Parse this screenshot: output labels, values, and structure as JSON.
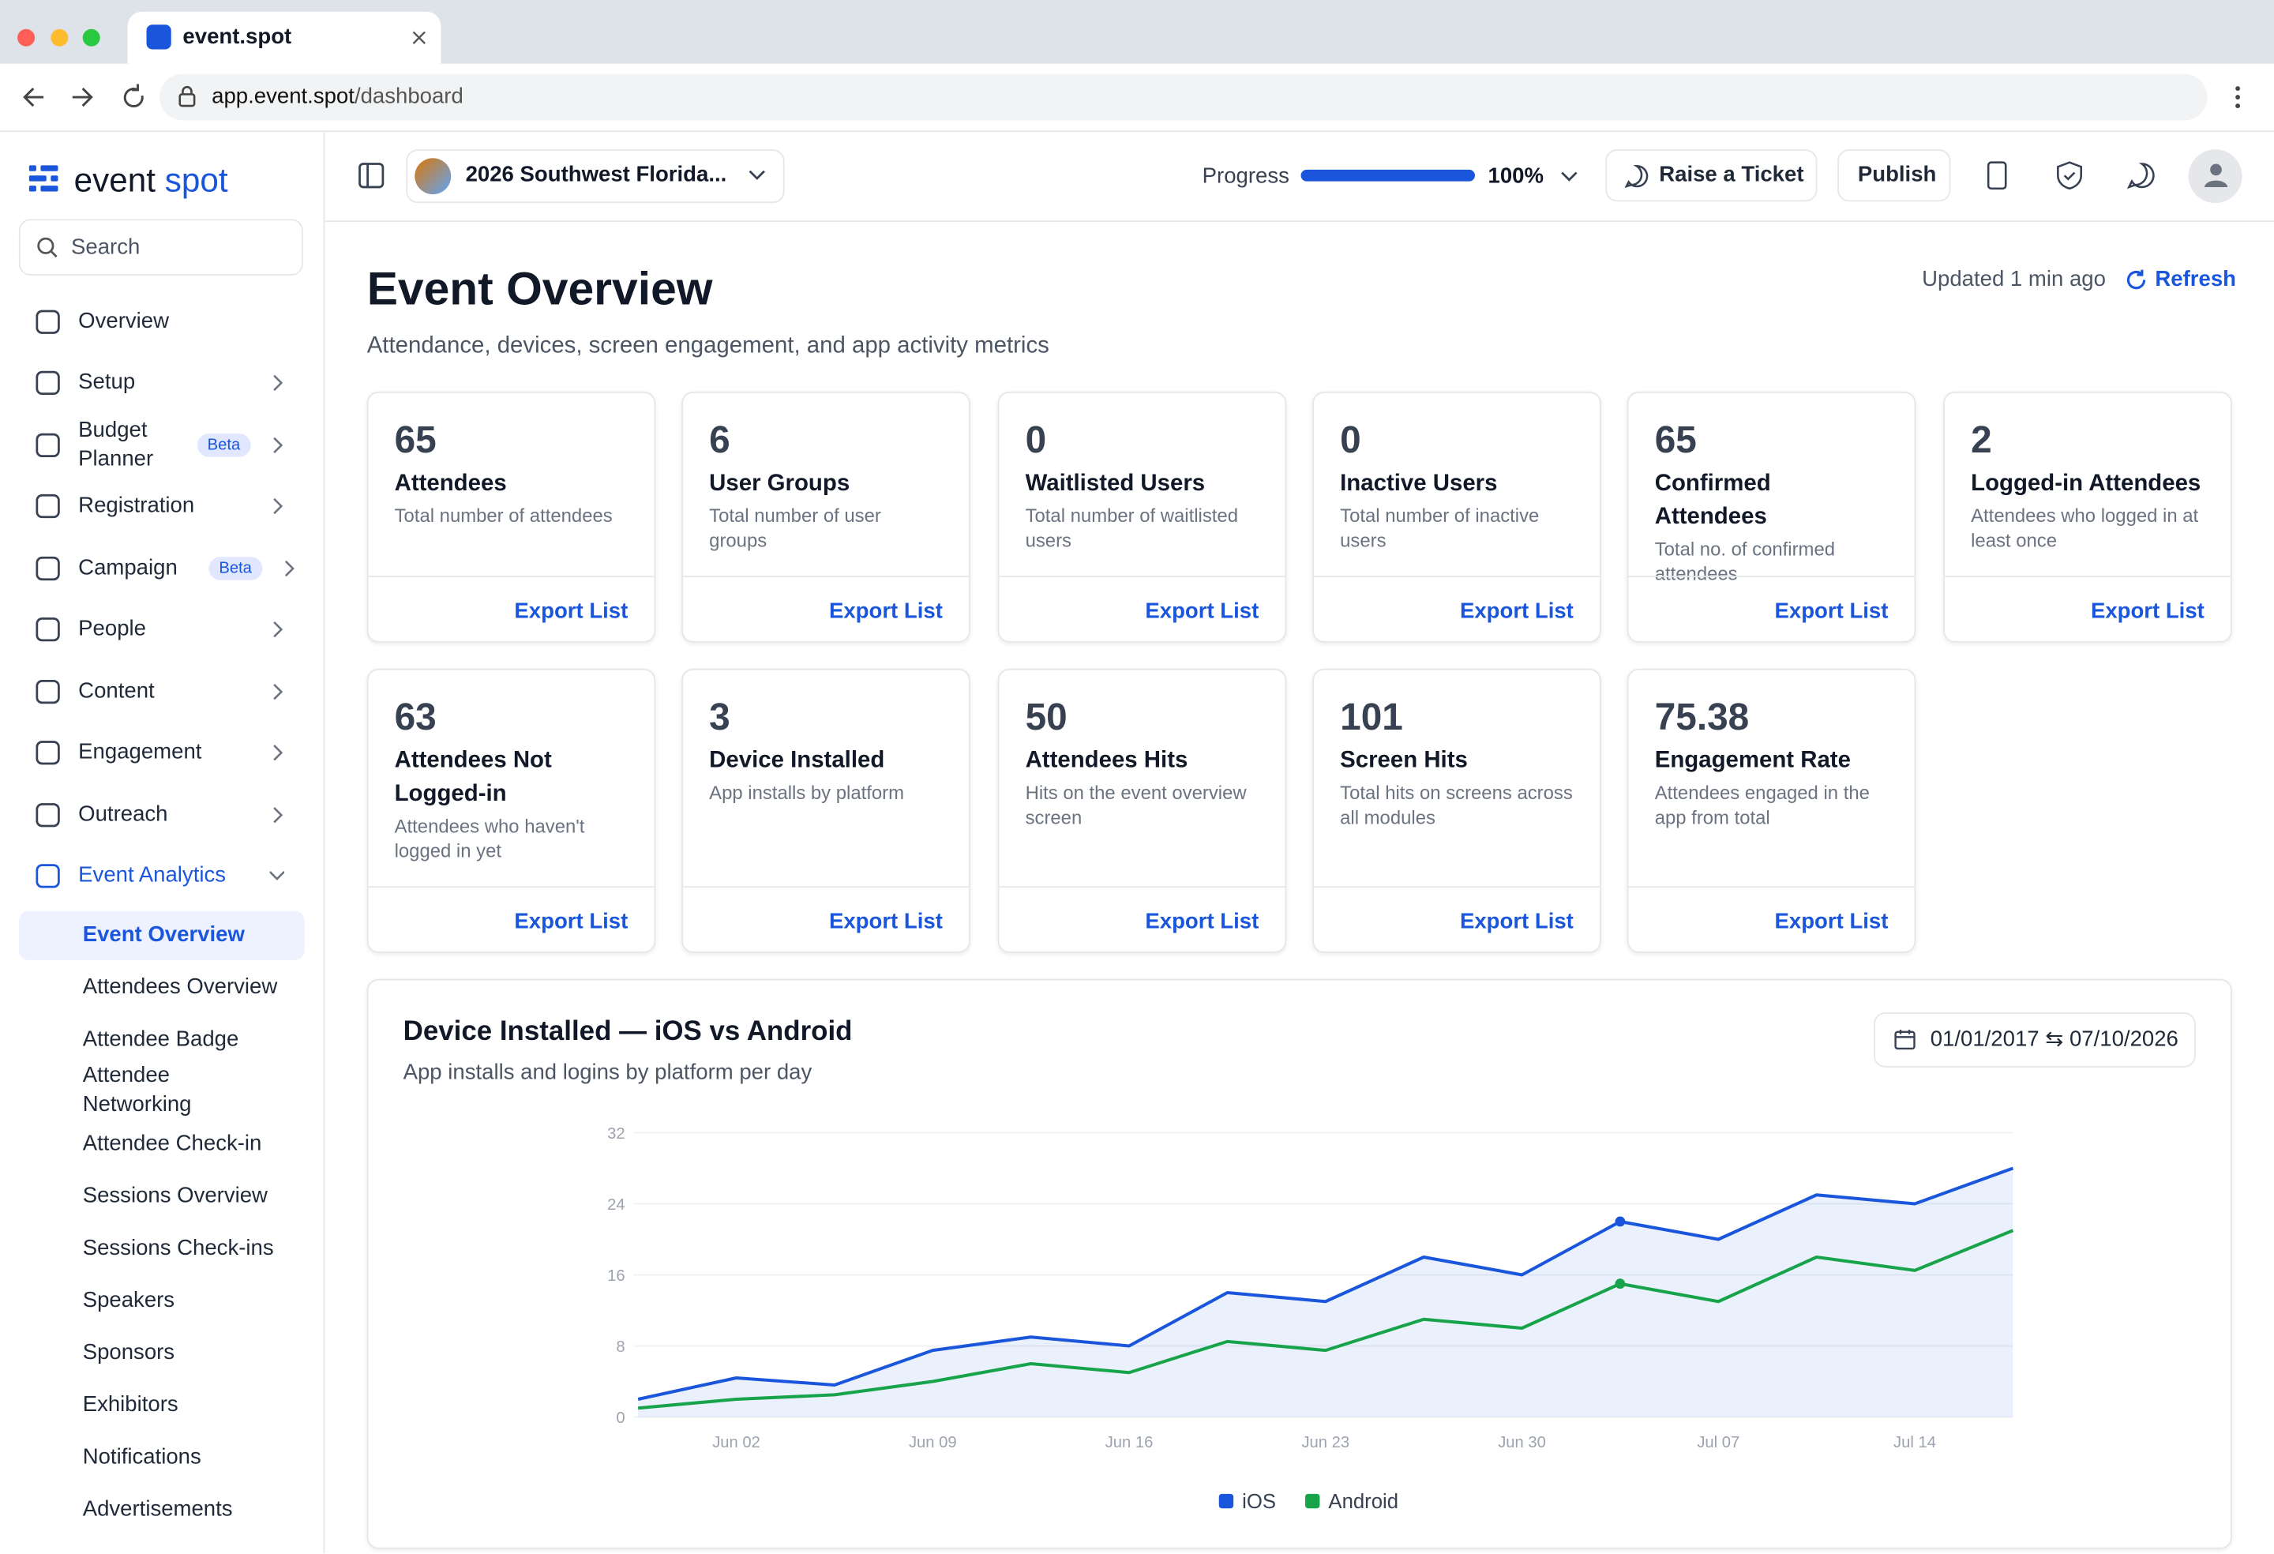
{
  "browser": {
    "tab_title": "event.spot",
    "url_host": "app.event.spot",
    "url_path": "/dashboard"
  },
  "sidebar": {
    "logo_a": "event",
    "logo_b": "spot",
    "search": "Search",
    "nav": [
      {
        "label": "Overview"
      },
      {
        "label": "Setup"
      },
      {
        "label": "Budget Planner",
        "badge": "Beta"
      },
      {
        "label": "Registration"
      },
      {
        "label": "Campaign",
        "badge": "Beta"
      },
      {
        "label": "People"
      },
      {
        "label": "Content"
      },
      {
        "label": "Engagement"
      },
      {
        "label": "Outreach"
      },
      {
        "label": "Event Analytics"
      }
    ],
    "subnav": [
      "Event Overview",
      "Attendees Overview",
      "Attendee Badge",
      "Attendee Networking",
      "Attendee Check-in",
      "Sessions Overview",
      "Sessions Check-ins",
      "Speakers",
      "Sponsors",
      "Exhibitors",
      "Notifications",
      "Advertisements"
    ]
  },
  "topbar": {
    "event": "2026 Southwest Florida...",
    "progress_label": "Progress",
    "progress": {
      "value": 100,
      "label": "100%"
    },
    "raise": "Raise a Ticket",
    "publish": "Publish"
  },
  "header": {
    "title": "Event Overview",
    "subtitle": "Attendance, devices, screen engagement, and app activity metrics",
    "updated": "Updated 1 min ago",
    "refresh": "Refresh"
  },
  "cards": [
    {
      "value": 65,
      "title": "Attendees",
      "desc": "Total number of attendees",
      "action": "Export List"
    },
    {
      "value": 6,
      "title": "User Groups",
      "desc": "Total number of user groups",
      "action": "Export List"
    },
    {
      "value": 0,
      "title": "Waitlisted Users",
      "desc": "Total number of waitlisted users",
      "action": "Export List"
    },
    {
      "value": 0,
      "title": "Inactive Users",
      "desc": "Total number of inactive users",
      "action": "Export List"
    },
    {
      "value": 65,
      "title": "Confirmed Attendees",
      "desc": "Total no. of confirmed attendees",
      "action": "Export List"
    },
    {
      "value": 2,
      "title": "Logged-in Attendees",
      "desc": "Attendees who logged in at least once",
      "action": "Export List"
    },
    {
      "value": 63,
      "title": "Attendees Not Logged-in",
      "desc": "Attendees who haven't logged in yet",
      "action": "Export List"
    },
    {
      "value": 3,
      "title": "Device Installed",
      "desc": "App installs by platform",
      "action": "Export List"
    },
    {
      "value": 50,
      "title": "Attendees Hits",
      "desc": "Hits on the event overview screen",
      "action": "Export List"
    },
    {
      "value": 101,
      "title": "Screen Hits",
      "desc": "Total hits on screens across all modules",
      "action": "Export List"
    },
    {
      "value": 75.38,
      "title": "Engagement Rate",
      "desc": "Attendees engaged in the app from total",
      "action": "Export List"
    }
  ],
  "chart_data": {
    "type": "line",
    "title": "Device Installed — iOS vs Android",
    "subtitle": "App installs and logins by platform per day",
    "date_range": "01/01/2017 ⇆ 07/10/2026",
    "categories": [
      null,
      "Jun 02",
      null,
      "Jun 09",
      null,
      "Jun 16",
      null,
      "Jun 23",
      null,
      "Jun 30",
      null,
      "Jul 07",
      null,
      "Jul 14",
      null
    ],
    "series": [
      {
        "name": "iOS",
        "color": "#1a56db",
        "values": [
          2,
          4.4,
          3.6,
          7.5,
          9,
          8,
          14,
          13,
          18,
          16,
          22,
          20,
          25,
          24,
          28
        ]
      },
      {
        "name": "Android",
        "color": "#16a34a",
        "values": [
          1,
          2,
          2.5,
          4,
          6,
          5,
          8.5,
          7.5,
          11,
          10,
          15,
          13,
          18,
          16.5,
          21
        ]
      }
    ],
    "ylim": [
      0,
      32
    ],
    "yticks": [
      0,
      8,
      16,
      24,
      32
    ],
    "grid": true,
    "area": true,
    "marker_index": 10,
    "legend": "bottom"
  }
}
